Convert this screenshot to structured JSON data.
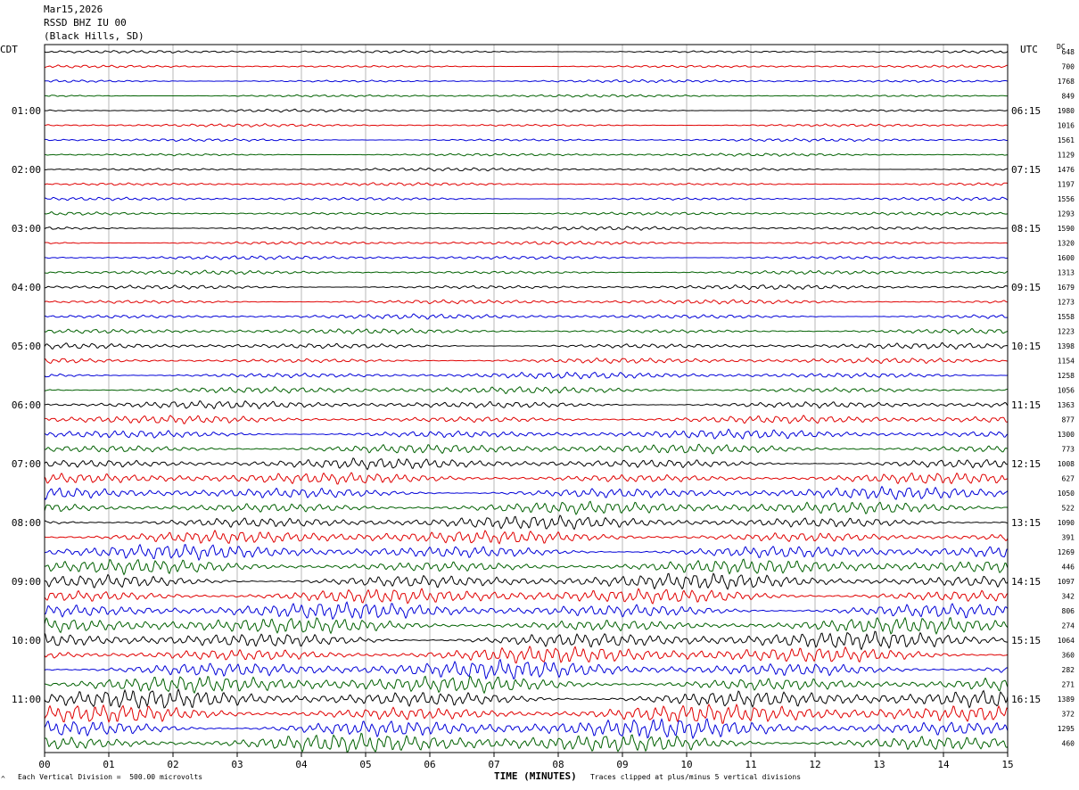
{
  "header": {
    "date": "Mar15,2026",
    "station": "RSSD BHZ IU 00",
    "location": "(Black Hills, SD)"
  },
  "labels": {
    "left_tz": "CDT",
    "right_tz": "UTC",
    "dc": "DC",
    "footer_left": "Each Vertical Division =  500.00 microvolts",
    "footer_right": "Traces clipped at plus/minus 5 vertical divisions",
    "corner_mark": "^"
  },
  "colors": {
    "trace_cycle": [
      "#000000",
      "#e00000",
      "#0000d8",
      "#006000"
    ],
    "grid": "#888888",
    "frame": "#000000"
  },
  "chart_data": {
    "type": "line",
    "subtype": "helicorder",
    "xlabel": "TIME (MINUTES)",
    "xlim": [
      0,
      15
    ],
    "x_ticks": [
      "00",
      "01",
      "02",
      "03",
      "04",
      "05",
      "06",
      "07",
      "08",
      "09",
      "10",
      "11",
      "12",
      "13",
      "14",
      "15"
    ],
    "lines_per_hour": 4,
    "minutes_per_line": 15,
    "left_hour_labels": [
      "01:00",
      "02:00",
      "03:00",
      "04:00",
      "05:00",
      "06:00",
      "07:00",
      "08:00",
      "09:00",
      "10:00",
      "11:00"
    ],
    "right_hour_labels": [
      "06:15",
      "07:15",
      "08:15",
      "09:15",
      "10:15",
      "11:15",
      "12:15",
      "13:15",
      "14:15",
      "15:15",
      "16:15"
    ],
    "dc_offsets": [
      648,
      700,
      1768,
      849,
      1980,
      1016,
      1561,
      1129,
      1476,
      1197,
      1556,
      1293,
      1590,
      1320,
      1600,
      1313,
      1679,
      1273,
      1558,
      1223,
      1398,
      1154,
      1258,
      1056,
      1363,
      877,
      1300,
      773,
      1008,
      627,
      1050,
      522,
      1090,
      391,
      1269,
      446,
      1097,
      342,
      806,
      274,
      1064,
      360,
      282,
      271,
      1389,
      372,
      1295,
      460
    ],
    "amplitude_divisions": [
      0.35,
      0.33,
      0.35,
      0.33,
      0.36,
      0.36,
      0.37,
      0.37,
      0.4,
      0.38,
      0.4,
      0.4,
      0.45,
      0.45,
      0.48,
      0.5,
      0.55,
      0.55,
      0.6,
      0.62,
      0.7,
      0.7,
      0.8,
      0.85,
      0.95,
      1.0,
      1.1,
      1.2,
      1.3,
      1.4,
      1.5,
      1.6,
      1.6,
      1.7,
      1.8,
      1.8,
      1.9,
      1.9,
      2.0,
      2.0,
      2.1,
      2.1,
      2.2,
      2.2,
      2.3,
      2.3,
      2.4,
      2.4
    ],
    "clip_divisions": 5
  }
}
